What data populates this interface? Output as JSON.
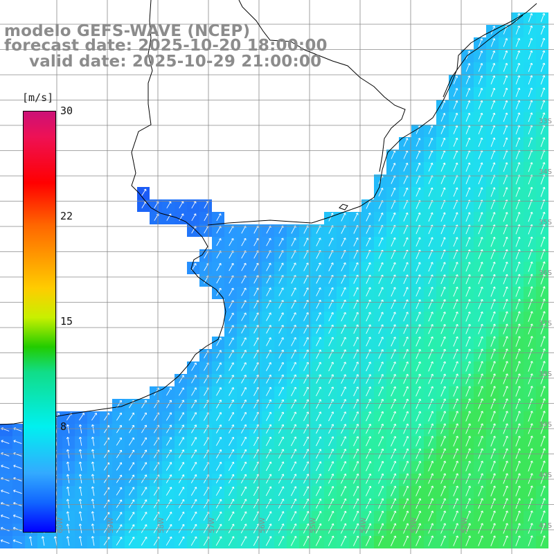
{
  "title": {
    "line1": "modelo GEFS-WAVE (NCEP)",
    "line2": "forecast date: 2025-10-20 18:00:00",
    "line3": "valid date: 2025-10-29 21:00:00"
  },
  "colorbar": {
    "unit": "[m/s]",
    "ticks": [
      "30",
      "22",
      "15",
      "8"
    ],
    "colors": [
      "#cc1177",
      "#ff0000",
      "#ff6600",
      "#ffcc00",
      "#22cc00",
      "#00f0f0",
      "#33aaff",
      "#0000ff"
    ]
  },
  "map": {
    "lat_labels": [
      "33S",
      "34S",
      "35S",
      "36S",
      "37S",
      "38S",
      "39S",
      "40S",
      "41S"
    ],
    "lon_labels": [
      "60W",
      "59W",
      "58W",
      "57W",
      "56W",
      "55W",
      "54W",
      "53W",
      "52W"
    ],
    "land_color": "#ffffff",
    "grid_color": "#888888",
    "arrow_color": "#ffffff"
  }
}
